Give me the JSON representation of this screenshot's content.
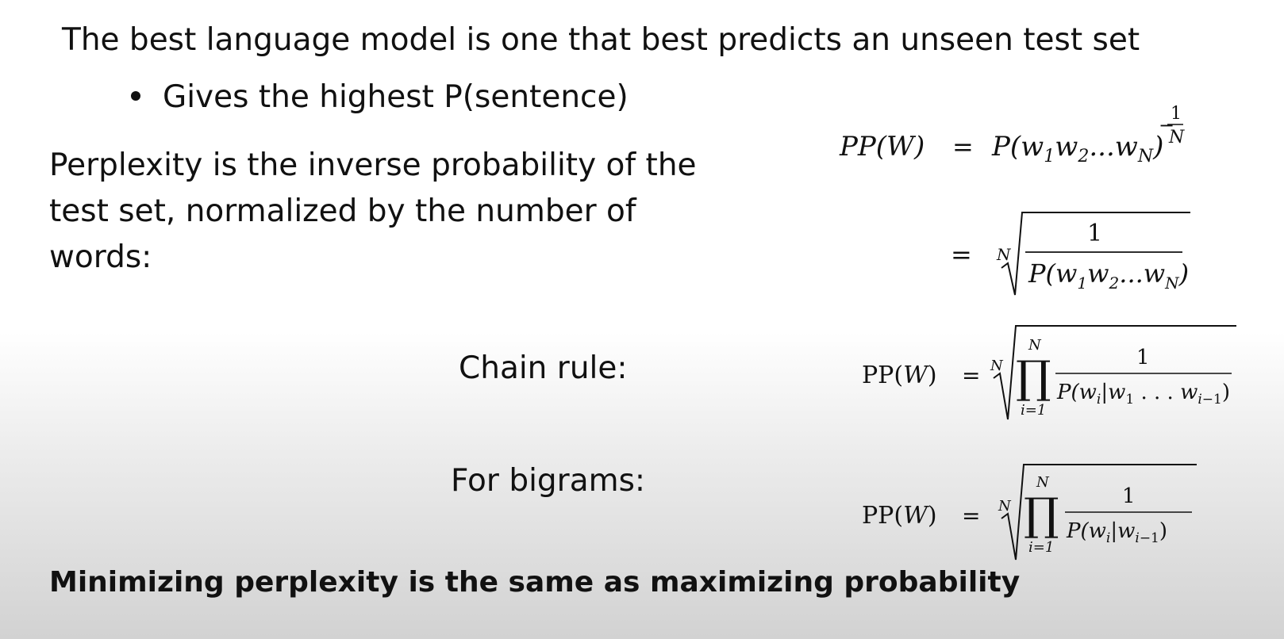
{
  "slide": {
    "headline": "The best language model is one that best predicts an unseen test set",
    "bullet": "Gives the highest P(sentence)",
    "definition": "Perplexity is the inverse probability of the test set, normalized by the number of words:",
    "chain_label": "Chain rule:",
    "bigram_label": "For bigrams:",
    "conclusion": "Minimizing perplexity is the same as maximizing probability"
  },
  "formulas": {
    "pp_lhs": "PP(W)",
    "pp_lhs_roman": "PP(W)",
    "equals": "=",
    "prob_seq": "P(w1w2...wN)",
    "neg_one": "1",
    "exp_N": "N",
    "root_index": "N",
    "numerator": "1",
    "product_top": "N",
    "product_bottom": "i=1",
    "chain_denominator": "P(wi|w1 ... wi−1)",
    "bigram_denominator": "P(wi|wi−1)"
  }
}
